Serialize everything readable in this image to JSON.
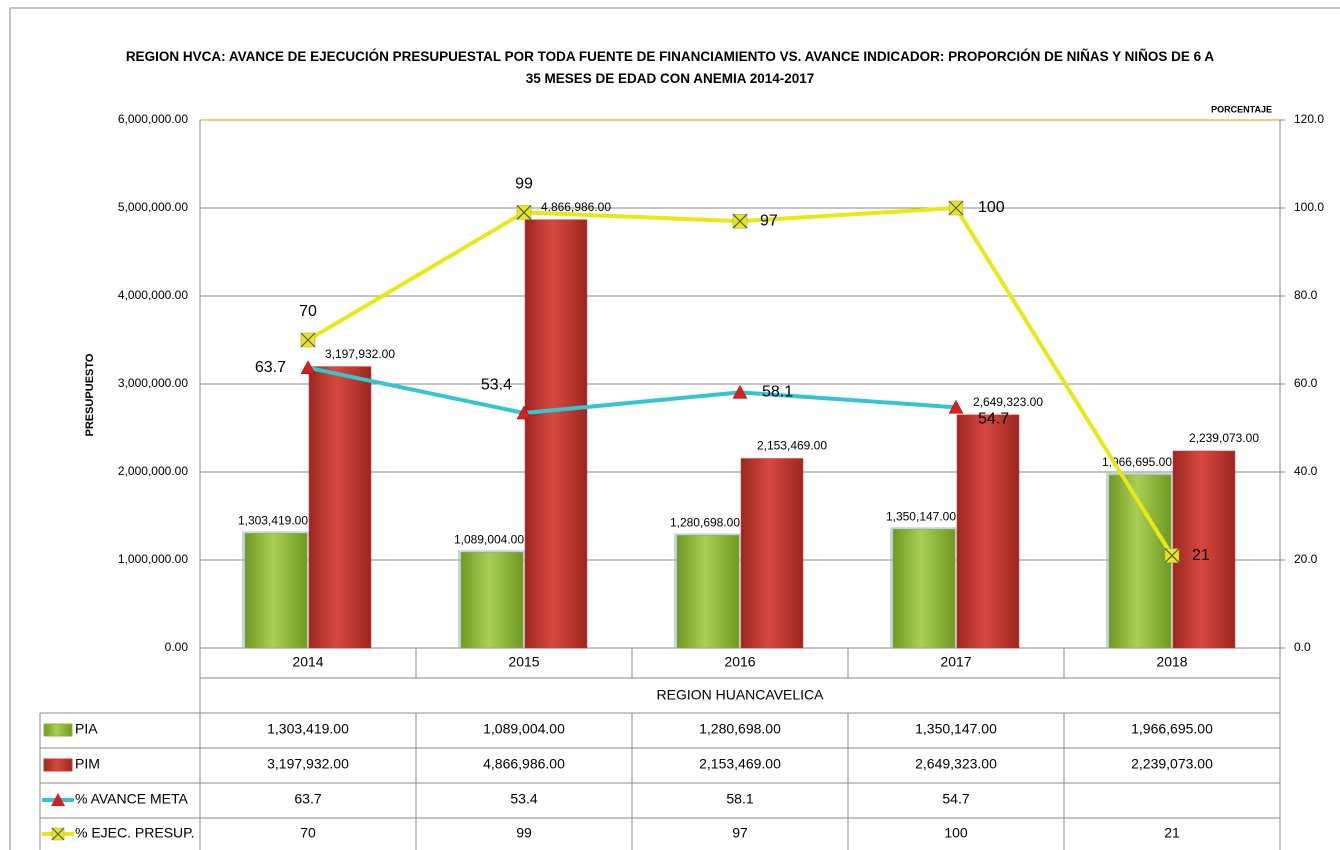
{
  "chart_data": {
    "type": "bar",
    "title": "REGION HVCA: AVANCE DE EJECUCIÓN PRESUPUESTAL POR TODA FUENTE DE FINANCIAMIENTO VS. AVANCE INDICADOR: PROPORCIÓN DE NIÑAS Y NIÑOS DE 6 A 35 MESES DE EDAD CON ANEMIA 2014-2017",
    "y_label": "PRESUPUESTO",
    "y2_label": "PORCENTAJE",
    "x_label": "REGION HUANCAVELICA",
    "categories": [
      "2014",
      "2015",
      "2016",
      "2017",
      "2018"
    ],
    "series": [
      {
        "name": "PIA",
        "type": "bar",
        "color": "#8db53c",
        "values": [
          1303419,
          1089004,
          1280698,
          1350147,
          1966695
        ],
        "value_labels": [
          "1,303,419.00",
          "1,089,004.00",
          "1,280,698.00",
          "1,350,147.00",
          "1,966,695.00"
        ]
      },
      {
        "name": "PIM",
        "type": "bar",
        "color": "#c63a32",
        "values": [
          3197932,
          4866986,
          2153469,
          2649323,
          2239073
        ],
        "value_labels": [
          "3,197,932.00",
          "4,866,986.00",
          "2,153,469.00",
          "2,649,323.00",
          "2,239,073.00"
        ]
      },
      {
        "name": "% AVANCE META",
        "type": "line",
        "axis": "y2",
        "color": "#33c6d0",
        "marker": "triangle",
        "marker_color": "#d42020",
        "values": [
          63.7,
          53.4,
          58.1,
          54.7,
          null
        ]
      },
      {
        "name": "% EJEC. PRESUP.",
        "type": "line",
        "axis": "y2",
        "color": "#e8e817",
        "marker": "x",
        "marker_color": "#e8e817",
        "values": [
          70,
          99,
          97,
          100,
          21
        ]
      }
    ],
    "ylim": [
      0,
      6000000
    ],
    "yticks": [
      {
        "value": 0,
        "label": "0.00"
      },
      {
        "value": 1000000,
        "label": "1,000,000.00"
      },
      {
        "value": 2000000,
        "label": "2,000,000.00"
      },
      {
        "value": 3000000,
        "label": "3,000,000.00"
      },
      {
        "value": 4000000,
        "label": "4,000,000.00"
      },
      {
        "value": 5000000,
        "label": "5,000,000.00"
      },
      {
        "value": 6000000,
        "label": "6,000,000.00"
      }
    ],
    "y2lim": [
      0,
      120
    ],
    "y2ticks": [
      {
        "value": 0,
        "label": "0.0"
      },
      {
        "value": 20,
        "label": "20.0"
      },
      {
        "value": 40,
        "label": "40.0"
      },
      {
        "value": 60,
        "label": "60.0"
      },
      {
        "value": 80,
        "label": "80.0"
      },
      {
        "value": 100,
        "label": "100.0"
      },
      {
        "value": 120,
        "label": "120.0"
      }
    ],
    "grid": true,
    "data_table": true
  }
}
